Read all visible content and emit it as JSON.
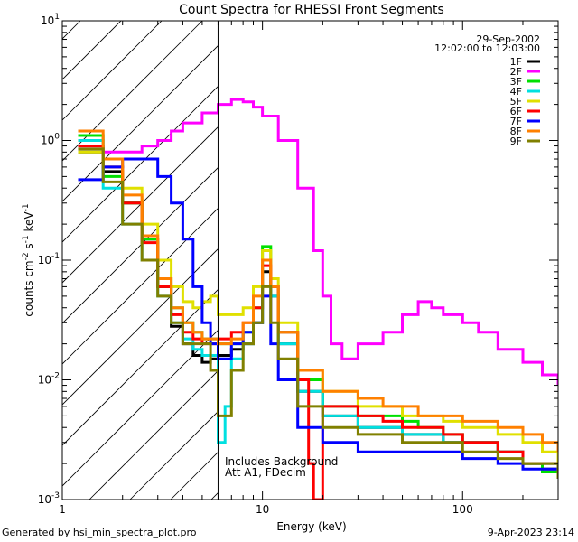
{
  "chart_data": {
    "type": "line",
    "title": "Count Spectra for RHESSI Front Segments",
    "xlabel": "Energy (keV)",
    "ylabel": "counts cm-2 s-1 keV-1",
    "x_scale": "log",
    "y_scale": "log",
    "xlim": [
      1,
      300
    ],
    "ylim": [
      0.001,
      10
    ],
    "x_ticks": [
      {
        "value": 1,
        "label": "1"
      },
      {
        "value": 10,
        "label": "10"
      },
      {
        "value": 100,
        "label": "100"
      }
    ],
    "y_ticks": [
      {
        "value": 0.001,
        "base": "10",
        "exp": "-3"
      },
      {
        "value": 0.01,
        "base": "10",
        "exp": "-2"
      },
      {
        "value": 0.1,
        "base": "10",
        "exp": "-1"
      },
      {
        "value": 1,
        "base": "10",
        "exp": "0"
      },
      {
        "value": 10,
        "base": "10",
        "exp": "1"
      }
    ],
    "date": "29-Sep-2002",
    "time_range": "12:02:00 to 12:03:00",
    "annotations": [
      "Includes Background",
      "Att A1, FDecim"
    ],
    "hatched_region_upper_kev": 6,
    "legend_position": "top-right",
    "series": [
      {
        "name": "1F",
        "color": "#000000",
        "points": [
          [
            1.2,
            0.8
          ],
          [
            1.6,
            0.55
          ],
          [
            2.0,
            0.3
          ],
          [
            2.5,
            0.15
          ],
          [
            3.0,
            0.06
          ],
          [
            3.5,
            0.028
          ],
          [
            4.0,
            0.02
          ],
          [
            4.5,
            0.016
          ],
          [
            5.0,
            0.014
          ],
          [
            5.5,
            0.015
          ],
          [
            6.0,
            0.016
          ],
          [
            7.0,
            0.018
          ],
          [
            8.0,
            0.02
          ],
          [
            9.0,
            0.03
          ],
          [
            10.0,
            0.08
          ],
          [
            11.0,
            0.05
          ],
          [
            12.0,
            0.02
          ],
          [
            15.0,
            0.008
          ],
          [
            20.0,
            0.005
          ],
          [
            30.0,
            0.004
          ],
          [
            40.0,
            0.004
          ],
          [
            50.0,
            0.0035
          ],
          [
            60.0,
            0.0035
          ],
          [
            80.0,
            0.003
          ],
          [
            100.0,
            0.003
          ],
          [
            150.0,
            0.0025
          ],
          [
            200.0,
            0.002
          ],
          [
            250.0,
            0.0018
          ],
          [
            300.0,
            0.0016
          ]
        ]
      },
      {
        "name": "2F",
        "color": "#ff00ff",
        "points": [
          [
            1.2,
            0.9
          ],
          [
            1.6,
            0.8
          ],
          [
            2.0,
            0.8
          ],
          [
            2.5,
            0.9
          ],
          [
            3.0,
            1.0
          ],
          [
            3.5,
            1.2
          ],
          [
            4.0,
            1.4
          ],
          [
            5.0,
            1.7
          ],
          [
            6.0,
            2.0
          ],
          [
            7.0,
            2.2
          ],
          [
            8.0,
            2.1
          ],
          [
            9.0,
            1.9
          ],
          [
            10.0,
            1.6
          ],
          [
            12.0,
            1.0
          ],
          [
            15.0,
            0.4
          ],
          [
            18.0,
            0.12
          ],
          [
            20.0,
            0.05
          ],
          [
            22.0,
            0.02
          ],
          [
            25.0,
            0.015
          ],
          [
            30.0,
            0.02
          ],
          [
            40.0,
            0.025
          ],
          [
            50.0,
            0.035
          ],
          [
            60.0,
            0.045
          ],
          [
            70.0,
            0.04
          ],
          [
            80.0,
            0.035
          ],
          [
            100.0,
            0.03
          ],
          [
            120.0,
            0.025
          ],
          [
            150.0,
            0.018
          ],
          [
            200.0,
            0.014
          ],
          [
            250.0,
            0.011
          ],
          [
            300.0,
            0.009
          ]
        ]
      },
      {
        "name": "3F",
        "color": "#00e000",
        "points": [
          [
            1.2,
            1.1
          ],
          [
            1.6,
            0.5
          ],
          [
            2.0,
            0.3
          ],
          [
            2.5,
            0.15
          ],
          [
            3.0,
            0.07
          ],
          [
            3.5,
            0.04
          ],
          [
            4.0,
            0.03
          ],
          [
            4.5,
            0.025
          ],
          [
            5.0,
            0.022
          ],
          [
            6.0,
            0.02
          ],
          [
            7.0,
            0.02
          ],
          [
            8.0,
            0.025
          ],
          [
            9.0,
            0.04
          ],
          [
            10.0,
            0.13
          ],
          [
            11.0,
            0.06
          ],
          [
            12.0,
            0.025
          ],
          [
            15.0,
            0.01
          ],
          [
            20.0,
            0.006
          ],
          [
            30.0,
            0.005
          ],
          [
            40.0,
            0.005
          ],
          [
            50.0,
            0.0045
          ],
          [
            60.0,
            0.004
          ],
          [
            80.0,
            0.0035
          ],
          [
            100.0,
            0.003
          ],
          [
            150.0,
            0.0025
          ],
          [
            200.0,
            0.002
          ],
          [
            250.0,
            0.0017
          ],
          [
            300.0,
            0.0015
          ]
        ]
      },
      {
        "name": "4F",
        "color": "#00e0e0",
        "points": [
          [
            1.2,
            1.0
          ],
          [
            1.6,
            0.4
          ],
          [
            2.0,
            0.2
          ],
          [
            2.5,
            0.1
          ],
          [
            3.0,
            0.05
          ],
          [
            3.5,
            0.03
          ],
          [
            4.0,
            0.022
          ],
          [
            4.5,
            0.018
          ],
          [
            5.0,
            0.016
          ],
          [
            6.0,
            0.003
          ],
          [
            6.5,
            0.006
          ],
          [
            7.0,
            0.015
          ],
          [
            8.0,
            0.02
          ],
          [
            9.0,
            0.03
          ],
          [
            10.0,
            0.1
          ],
          [
            11.0,
            0.05
          ],
          [
            12.0,
            0.02
          ],
          [
            15.0,
            0.008
          ],
          [
            20.0,
            0.005
          ],
          [
            30.0,
            0.004
          ],
          [
            50.0,
            0.0035
          ],
          [
            80.0,
            0.003
          ],
          [
            100.0,
            0.003
          ],
          [
            150.0,
            0.0025
          ],
          [
            200.0,
            0.002
          ],
          [
            300.0,
            0.0015
          ]
        ]
      },
      {
        "name": "5F",
        "color": "#e0e000",
        "points": [
          [
            1.2,
            0.8
          ],
          [
            1.6,
            0.6
          ],
          [
            2.0,
            0.4
          ],
          [
            2.5,
            0.2
          ],
          [
            3.0,
            0.1
          ],
          [
            3.5,
            0.06
          ],
          [
            4.0,
            0.045
          ],
          [
            4.5,
            0.04
          ],
          [
            5.0,
            0.045
          ],
          [
            5.5,
            0.05
          ],
          [
            6.0,
            0.035
          ],
          [
            7.0,
            0.035
          ],
          [
            8.0,
            0.04
          ],
          [
            9.0,
            0.06
          ],
          [
            10.0,
            0.12
          ],
          [
            11.0,
            0.07
          ],
          [
            12.0,
            0.03
          ],
          [
            15.0,
            0.012
          ],
          [
            20.0,
            0.008
          ],
          [
            30.0,
            0.006
          ],
          [
            40.0,
            0.006
          ],
          [
            50.0,
            0.005
          ],
          [
            60.0,
            0.005
          ],
          [
            80.0,
            0.0045
          ],
          [
            100.0,
            0.004
          ],
          [
            150.0,
            0.0035
          ],
          [
            200.0,
            0.003
          ],
          [
            250.0,
            0.0025
          ],
          [
            300.0,
            0.002
          ]
        ]
      },
      {
        "name": "6F",
        "color": "#ff0000",
        "points": [
          [
            1.2,
            0.9
          ],
          [
            1.6,
            0.6
          ],
          [
            2.0,
            0.3
          ],
          [
            2.5,
            0.14
          ],
          [
            3.0,
            0.06
          ],
          [
            3.5,
            0.035
          ],
          [
            4.0,
            0.025
          ],
          [
            4.5,
            0.022
          ],
          [
            5.0,
            0.02
          ],
          [
            6.0,
            0.022
          ],
          [
            7.0,
            0.025
          ],
          [
            8.0,
            0.03
          ],
          [
            9.0,
            0.04
          ],
          [
            10.0,
            0.09
          ],
          [
            11.0,
            0.06
          ],
          [
            12.0,
            0.025
          ],
          [
            15.0,
            0.01
          ],
          [
            17.0,
            0.002
          ],
          [
            18.0,
            0.001
          ],
          [
            20.0,
            0.006
          ],
          [
            30.0,
            0.005
          ],
          [
            40.0,
            0.0045
          ],
          [
            50.0,
            0.004
          ],
          [
            60.0,
            0.004
          ],
          [
            80.0,
            0.0035
          ],
          [
            100.0,
            0.003
          ],
          [
            150.0,
            0.0025
          ],
          [
            200.0,
            0.002
          ],
          [
            300.0,
            0.0015
          ]
        ]
      },
      {
        "name": "7F",
        "color": "#0000ff",
        "points": [
          [
            1.2,
            0.47
          ],
          [
            1.6,
            0.6
          ],
          [
            2.0,
            0.7
          ],
          [
            2.5,
            0.7
          ],
          [
            3.0,
            0.5
          ],
          [
            3.5,
            0.3
          ],
          [
            4.0,
            0.15
          ],
          [
            4.5,
            0.06
          ],
          [
            5.0,
            0.03
          ],
          [
            5.5,
            0.02
          ],
          [
            6.0,
            0.015
          ],
          [
            7.0,
            0.02
          ],
          [
            8.0,
            0.025
          ],
          [
            9.0,
            0.03
          ],
          [
            10.0,
            0.05
          ],
          [
            11.0,
            0.02
          ],
          [
            12.0,
            0.01
          ],
          [
            15.0,
            0.004
          ],
          [
            20.0,
            0.003
          ],
          [
            30.0,
            0.0025
          ],
          [
            40.0,
            0.0025
          ],
          [
            50.0,
            0.0025
          ],
          [
            60.0,
            0.0025
          ],
          [
            80.0,
            0.0025
          ],
          [
            100.0,
            0.0022
          ],
          [
            150.0,
            0.002
          ],
          [
            200.0,
            0.0018
          ],
          [
            300.0,
            0.0015
          ]
        ]
      },
      {
        "name": "8F",
        "color": "#ff8000",
        "points": [
          [
            1.2,
            1.2
          ],
          [
            1.6,
            0.7
          ],
          [
            2.0,
            0.35
          ],
          [
            2.5,
            0.16
          ],
          [
            3.0,
            0.07
          ],
          [
            3.5,
            0.04
          ],
          [
            4.0,
            0.03
          ],
          [
            4.5,
            0.025
          ],
          [
            5.0,
            0.022
          ],
          [
            6.0,
            0.02
          ],
          [
            7.0,
            0.022
          ],
          [
            8.0,
            0.03
          ],
          [
            9.0,
            0.05
          ],
          [
            10.0,
            0.1
          ],
          [
            11.0,
            0.06
          ],
          [
            12.0,
            0.025
          ],
          [
            15.0,
            0.012
          ],
          [
            20.0,
            0.008
          ],
          [
            30.0,
            0.007
          ],
          [
            40.0,
            0.006
          ],
          [
            50.0,
            0.006
          ],
          [
            60.0,
            0.005
          ],
          [
            80.0,
            0.005
          ],
          [
            100.0,
            0.0045
          ],
          [
            150.0,
            0.004
          ],
          [
            200.0,
            0.0035
          ],
          [
            250.0,
            0.003
          ],
          [
            300.0,
            0.0025
          ]
        ]
      },
      {
        "name": "9F",
        "color": "#808000",
        "points": [
          [
            1.2,
            0.85
          ],
          [
            1.6,
            0.45
          ],
          [
            2.0,
            0.2
          ],
          [
            2.5,
            0.1
          ],
          [
            3.0,
            0.05
          ],
          [
            3.5,
            0.03
          ],
          [
            4.0,
            0.02
          ],
          [
            4.5,
            0.02
          ],
          [
            5.0,
            0.02
          ],
          [
            5.5,
            0.012
          ],
          [
            6.0,
            0.005
          ],
          [
            7.0,
            0.012
          ],
          [
            8.0,
            0.02
          ],
          [
            9.0,
            0.03
          ],
          [
            10.0,
            0.06
          ],
          [
            11.0,
            0.03
          ],
          [
            12.0,
            0.015
          ],
          [
            15.0,
            0.006
          ],
          [
            20.0,
            0.004
          ],
          [
            30.0,
            0.0035
          ],
          [
            40.0,
            0.0035
          ],
          [
            50.0,
            0.003
          ],
          [
            60.0,
            0.003
          ],
          [
            80.0,
            0.003
          ],
          [
            100.0,
            0.0025
          ],
          [
            150.0,
            0.0022
          ],
          [
            200.0,
            0.002
          ],
          [
            300.0,
            0.0015
          ]
        ]
      }
    ]
  },
  "footer": {
    "generated_by": "Generated by hsi_min_spectra_plot.pro",
    "timestamp": "9-Apr-2023 23:14"
  }
}
